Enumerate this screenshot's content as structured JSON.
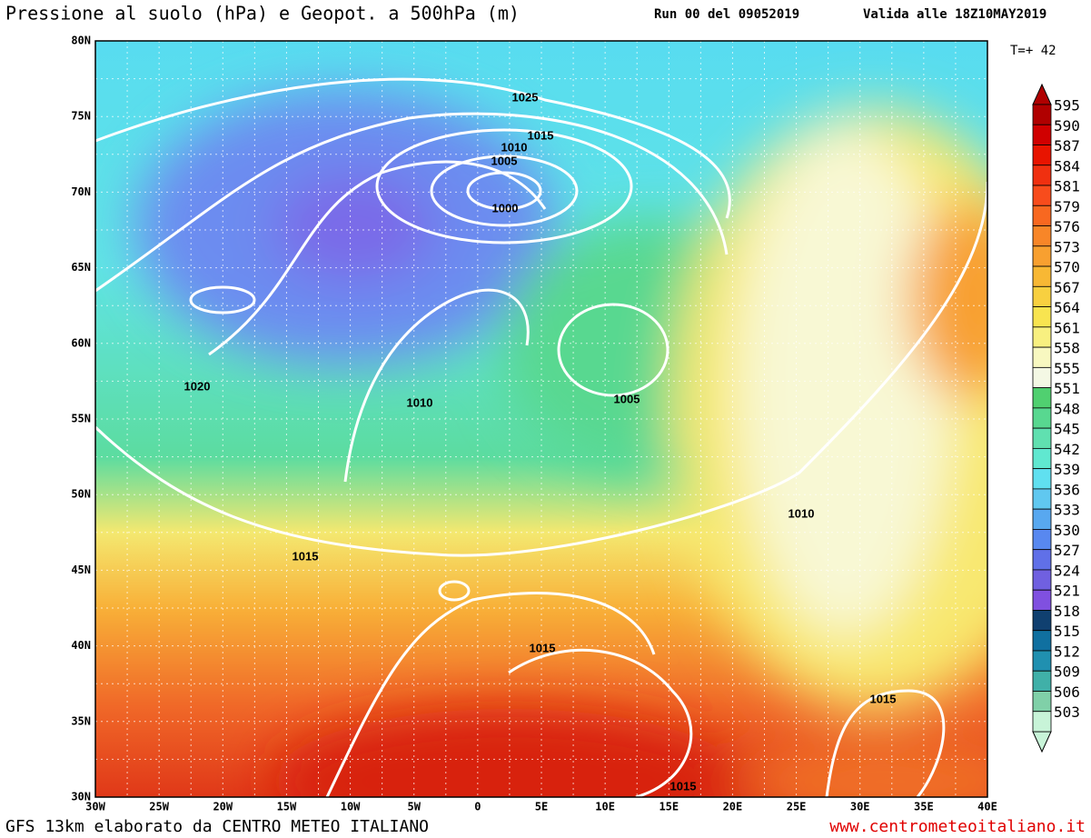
{
  "header": {
    "title": "Pressione al suolo (hPa) e Geopot. a 500hPa (m)",
    "run": "Run 00 del 09052019",
    "valid": "Valida alle 18Z10MAY2019",
    "lead": "T=+ 42"
  },
  "map": {
    "lat_labels": [
      "80N",
      "75N",
      "70N",
      "65N",
      "60N",
      "55N",
      "50N",
      "45N",
      "40N",
      "35N",
      "30N"
    ],
    "lon_labels": [
      "30W",
      "25W",
      "20W",
      "15W",
      "10W",
      "5W",
      "0",
      "5E",
      "10E",
      "15E",
      "20E",
      "25E",
      "30E",
      "35E",
      "40E"
    ],
    "isobar_labels": [
      "1025",
      "1015",
      "1010",
      "1005",
      "1000",
      "1020",
      "1010",
      "1005",
      "1015",
      "1010",
      "1015",
      "1015",
      "1015"
    ]
  },
  "legend": {
    "levels": [
      {
        "value": 595,
        "color": "#b00000"
      },
      {
        "value": 590,
        "color": "#d00000"
      },
      {
        "value": 587,
        "color": "#e81400"
      },
      {
        "value": 584,
        "color": "#f03010"
      },
      {
        "value": 581,
        "color": "#f84c1c"
      },
      {
        "value": 579,
        "color": "#f86820"
      },
      {
        "value": 576,
        "color": "#f88628"
      },
      {
        "value": 573,
        "color": "#f8a030"
      },
      {
        "value": 570,
        "color": "#f8b834"
      },
      {
        "value": 567,
        "color": "#f8d040"
      },
      {
        "value": 564,
        "color": "#f8e450"
      },
      {
        "value": 561,
        "color": "#f8f080"
      },
      {
        "value": 558,
        "color": "#f8f8c0"
      },
      {
        "value": 555,
        "color": "#f4f8e4"
      },
      {
        "value": 551,
        "color": "#50d070"
      },
      {
        "value": 548,
        "color": "#58d890"
      },
      {
        "value": 545,
        "color": "#60e0b0"
      },
      {
        "value": 542,
        "color": "#60e8d0"
      },
      {
        "value": 539,
        "color": "#60e0f0"
      },
      {
        "value": 536,
        "color": "#60c8f0"
      },
      {
        "value": 533,
        "color": "#58a8f0"
      },
      {
        "value": 530,
        "color": "#5888f0"
      },
      {
        "value": 527,
        "color": "#6070e8"
      },
      {
        "value": 524,
        "color": "#7060e0"
      },
      {
        "value": 521,
        "color": "#8050e0"
      },
      {
        "value": 518,
        "color": "#104070"
      },
      {
        "value": 515,
        "color": "#1070a0"
      },
      {
        "value": 512,
        "color": "#2090b0"
      },
      {
        "value": 509,
        "color": "#40b0a8"
      },
      {
        "value": 506,
        "color": "#80d0a8"
      },
      {
        "value": 503,
        "color": "#c8f4d8"
      }
    ]
  },
  "footer": {
    "source": "GFS 13km elaborato da CENTRO METEO ITALIANO",
    "site": "www.centrometeoitaliano.it"
  }
}
